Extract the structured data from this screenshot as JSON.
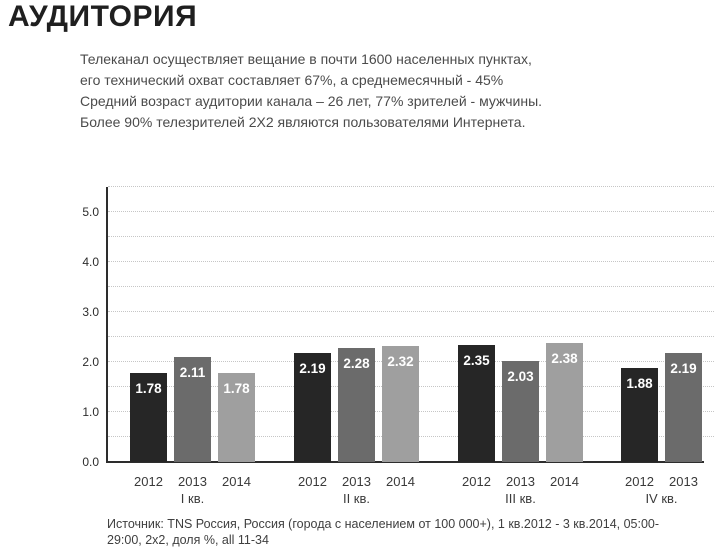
{
  "title": "АУДИТОРИЯ",
  "intro": {
    "lines": [
      "Телеканал осуществляет вещание в почти 1600 населенных пунктах,",
      "его технический охват составляет 67%, а среднемесячный - 45%",
      "Средний возраст аудитории канала – 26 лет, 77% зрителей - мужчины.",
      "Более 90% телезрителей 2X2 являются пользователями Интернета."
    ]
  },
  "source": "Источник: TNS Россия, Россия (города с населением от 100 000+), 1 кв.2012 - 3 кв.2014, 05:00-29:00, 2x2, доля %, all 11-34",
  "chart_data": {
    "type": "bar",
    "title": "",
    "xlabel": "",
    "ylabel": "",
    "ylim": [
      0,
      5.5
    ],
    "yticks": [
      "0.0",
      "1.0",
      "2.0",
      "3.0",
      "4.0",
      "5.0"
    ],
    "grid": true,
    "grid_step": 0.5,
    "legend_position": "none",
    "value_label_color": "#ffffff",
    "series_colors": {
      "2012": "#262626",
      "2013": "#6b6b6b",
      "2014": "#9f9f9f"
    },
    "groups": [
      {
        "quarter": "I кв.",
        "bars": [
          {
            "year": "2012",
            "value": 1.78,
            "label": "1.78"
          },
          {
            "year": "2013",
            "value": 2.11,
            "label": "2.11"
          },
          {
            "year": "2014",
            "value": 1.78,
            "label": "1.78"
          }
        ]
      },
      {
        "quarter": "II кв.",
        "bars": [
          {
            "year": "2012",
            "value": 2.19,
            "label": "2.19"
          },
          {
            "year": "2013",
            "value": 2.28,
            "label": "2.28"
          },
          {
            "year": "2014",
            "value": 2.32,
            "label": "2.32"
          }
        ]
      },
      {
        "quarter": "III кв.",
        "bars": [
          {
            "year": "2012",
            "value": 2.35,
            "label": "2.35"
          },
          {
            "year": "2013",
            "value": 2.03,
            "label": "2.03"
          },
          {
            "year": "2014",
            "value": 2.38,
            "label": "2.38"
          }
        ]
      },
      {
        "quarter": "IV кв.",
        "bars": [
          {
            "year": "2012",
            "value": 1.88,
            "label": "1.88"
          },
          {
            "year": "2013",
            "value": 2.19,
            "label": "2.19"
          }
        ]
      }
    ]
  }
}
